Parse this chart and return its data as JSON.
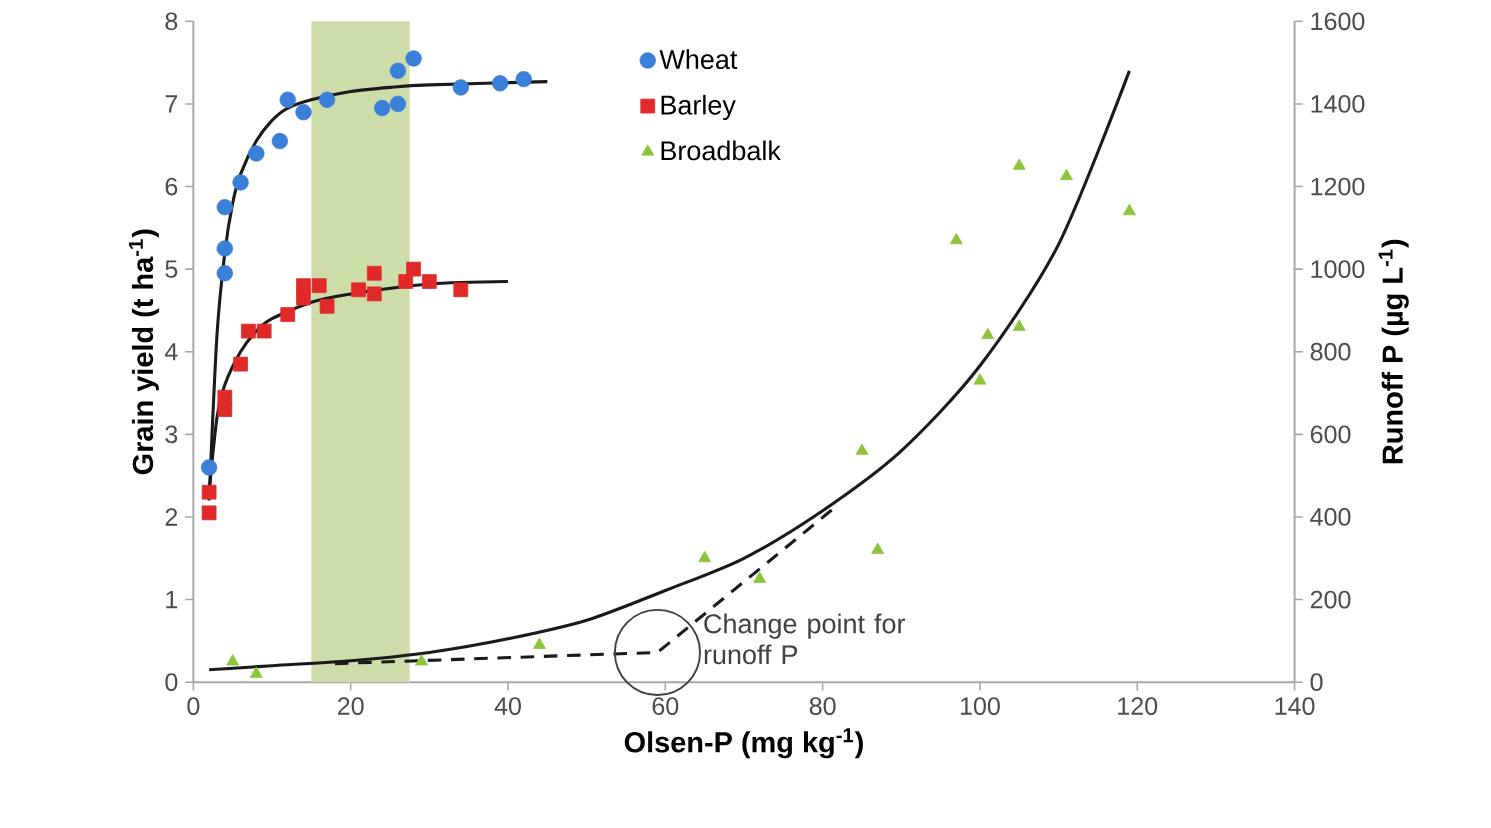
{
  "chart_data": {
    "type": "scatter",
    "xlabel": "Olsen-P (mg kg$^{-1}$)",
    "ylabel": "Grain yield (t ha$^{-1}$)",
    "y2label": "Runoff P (µg L$^{-1}$)",
    "xlim": [
      0,
      140
    ],
    "xticks": [
      0,
      20,
      40,
      60,
      80,
      100,
      120,
      140
    ],
    "ylim": [
      0,
      8
    ],
    "yticks": [
      0,
      1,
      2,
      3,
      4,
      5,
      6,
      7,
      8
    ],
    "y2lim": [
      0,
      1600
    ],
    "y2ticks": [
      0,
      200,
      400,
      600,
      800,
      1000,
      1200,
      1400,
      1600
    ],
    "legend": "top",
    "bands": [
      {
        "axis": "x",
        "from": 15,
        "to": 27.5,
        "color": "#cddda9"
      }
    ],
    "annotations": [
      "Change point for runoff P"
    ],
    "series": [
      {
        "name": "Wheat",
        "marker": "circle",
        "color": "#3a7fd8",
        "x": [
          2,
          4,
          4,
          4,
          6,
          8,
          11,
          12,
          14,
          17,
          24,
          26,
          26,
          28,
          34,
          39,
          42
        ],
        "values": [
          2.6,
          4.95,
          5.25,
          5.75,
          6.05,
          6.4,
          6.55,
          7.05,
          6.9,
          7.05,
          6.95,
          7.0,
          7.4,
          7.55,
          7.2,
          7.25,
          7.3
        ]
      },
      {
        "type": "line",
        "marker": "none",
        "color": "#1a1a1a",
        "x": [
          2,
          3,
          4,
          5,
          6,
          8,
          10,
          12,
          15,
          20,
          25,
          30,
          45
        ],
        "values": [
          2.2,
          4.2,
          5.2,
          5.8,
          6.15,
          6.55,
          6.8,
          6.95,
          7.05,
          7.15,
          7.2,
          7.23,
          7.27
        ]
      },
      {
        "name": "Barley",
        "marker": "square",
        "color": "#e02a2a",
        "x": [
          2,
          2,
          4,
          4,
          6,
          7,
          9,
          12,
          14,
          14,
          16,
          17,
          21,
          23,
          23,
          27,
          28,
          30,
          34
        ],
        "values": [
          2.3,
          2.05,
          3.45,
          3.3,
          3.85,
          4.25,
          4.25,
          4.45,
          4.65,
          4.8,
          4.8,
          4.55,
          4.75,
          4.95,
          4.7,
          4.85,
          5.0,
          4.85,
          4.75
        ]
      },
      {
        "type": "line",
        "marker": "none",
        "color": "#1a1a1a",
        "x": [
          2,
          3,
          4,
          6,
          8,
          10,
          15,
          20,
          30,
          40
        ],
        "values": [
          2.3,
          3.2,
          3.6,
          4.0,
          4.25,
          4.4,
          4.6,
          4.7,
          4.82,
          4.85
        ]
      },
      {
        "name": "Broadbalk",
        "marker": "triangle",
        "color": "#8cc43c",
        "axis": "y2",
        "x": [
          5,
          8,
          29,
          44,
          65,
          72,
          85,
          87,
          97,
          100,
          101,
          105,
          105,
          111,
          119
        ],
        "values": [
          50,
          20,
          50,
          90,
          300,
          250,
          560,
          320,
          1070,
          730,
          840,
          860,
          1250,
          1225,
          1140
        ]
      },
      {
        "type": "line",
        "marker": "none",
        "color": "#1a1a1a",
        "axis": "y2",
        "x": [
          2,
          10,
          20,
          30,
          40,
          50,
          60,
          70,
          80,
          90,
          100,
          110,
          119
        ],
        "values": [
          30,
          40,
          52,
          72,
          105,
          150,
          222,
          300,
          415,
          560,
          766,
          1060,
          1480
        ]
      },
      {
        "type": "line",
        "marker": "none",
        "line_style": "dashed",
        "color": "#1a1a1a",
        "axis": "y2",
        "x": [
          18,
          59,
          82
        ],
        "values": [
          45,
          72,
          430
        ]
      }
    ]
  }
}
